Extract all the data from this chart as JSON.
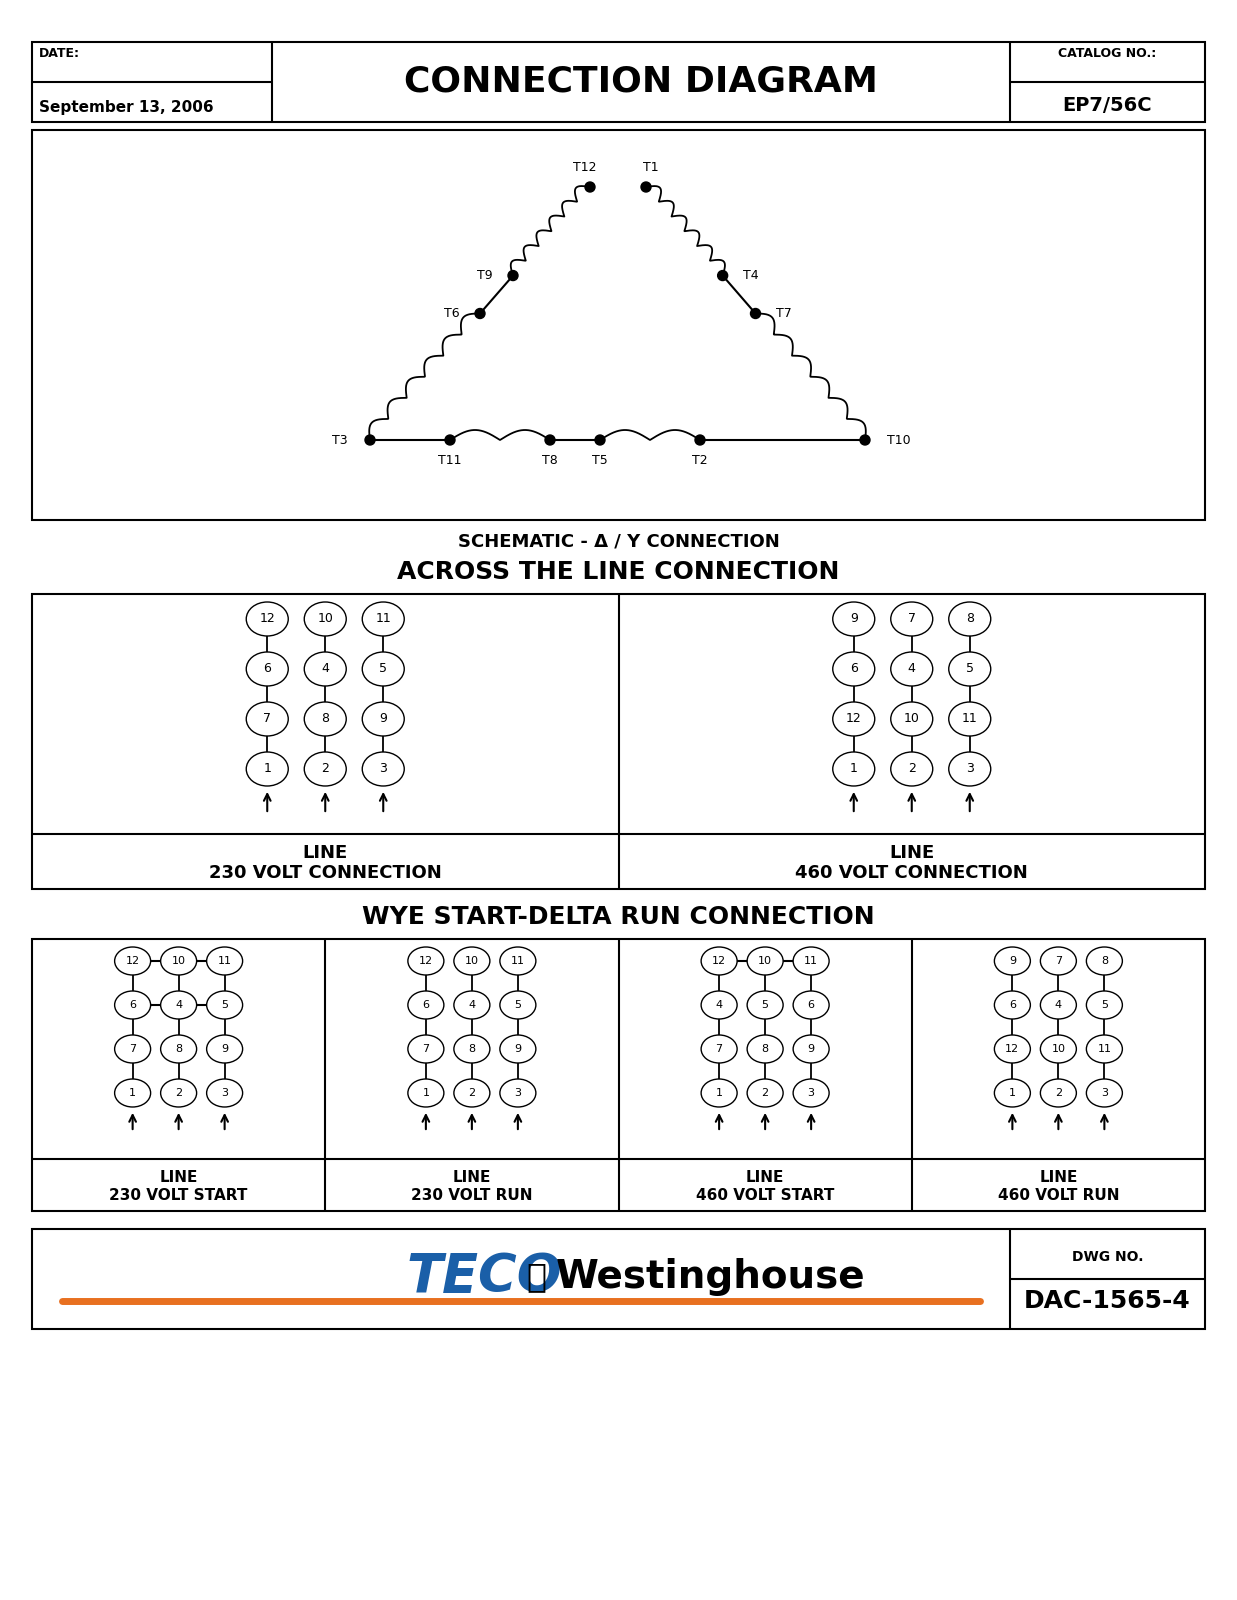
{
  "title": "CONNECTION DIAGRAM",
  "date_label": "DATE:",
  "date_value": "September 13, 2006",
  "catalog_label": "CATALOG NO.:",
  "catalog_value": "EP7/56C",
  "schematic_title": "SCHEMATIC - Δ / Y CONNECTION",
  "across_title": "ACROSS THE LINE CONNECTION",
  "wye_delta_title": "WYE START-DELTA RUN CONNECTION",
  "line_230_label": "LINE\n230 VOLT CONNECTION",
  "line_460_label": "LINE\n460 VOLT CONNECTION",
  "line_230_start": "LINE\n230 VOLT START",
  "line_230_run": "LINE\n230 VOLT RUN",
  "line_460_start": "LINE\n460 VOLT START",
  "line_460_run": "LINE\n460 VOLT RUN",
  "dwg_label": "DWG NO.",
  "dwg_value": "DAC-1565-4",
  "teco_color": "#1a5fa8",
  "orange_color": "#e87020",
  "bg_color": "#ffffff"
}
